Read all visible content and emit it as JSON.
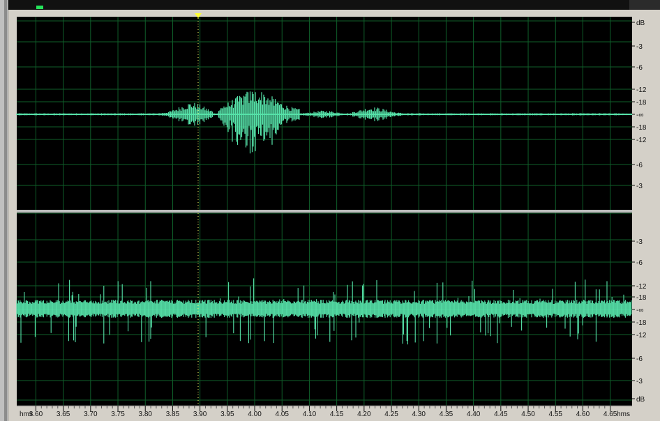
{
  "colors": {
    "background": "#000000",
    "grid": "#0f5f2a",
    "waveform": "#56e2a9",
    "playhead_marker": "#ffff33",
    "panel": "#d4d0c8"
  },
  "cursor_time": "3.875",
  "db_scale_top": [
    "dB",
    "-3",
    "-6",
    "-12",
    "-18",
    "-∞",
    "-18",
    "-12",
    "-6",
    "-3"
  ],
  "db_scale_bottom": [
    "-3",
    "-6",
    "-12",
    "-18",
    "-∞",
    "-18",
    "-12",
    "-6",
    "-3",
    "dB"
  ],
  "ruler": {
    "unit_left": "hms",
    "unit_right": "hms",
    "ticks": [
      "3.60",
      "3.65",
      "3.70",
      "3.75",
      "3.80",
      "3.85",
      "3.90",
      "3.95",
      "4.00",
      "4.05",
      "4.10",
      "4.15",
      "4.20",
      "4.25",
      "4.30",
      "4.35",
      "4.40",
      "4.45",
      "4.50",
      "4.55",
      "4.60",
      "4.65"
    ]
  }
}
